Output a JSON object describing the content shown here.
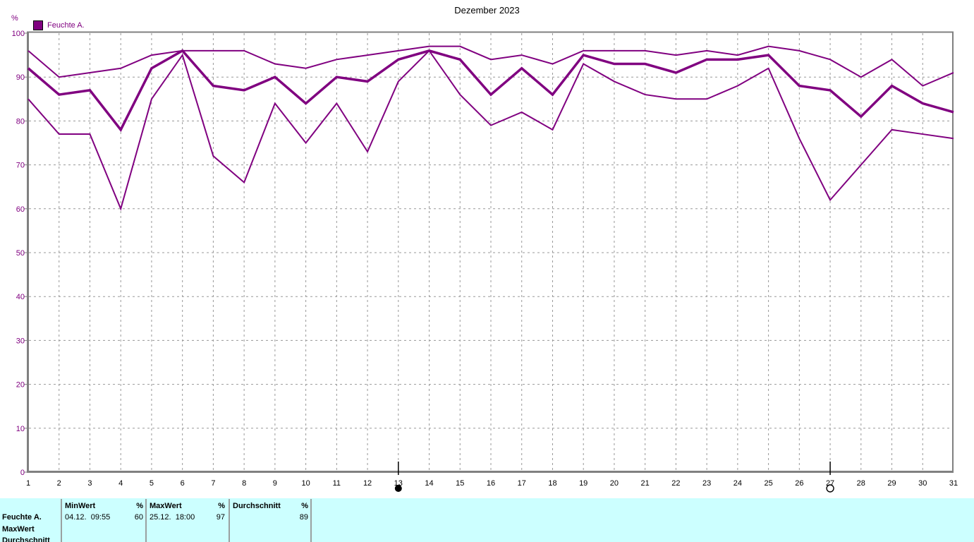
{
  "header": {
    "title": "Dezember 2023"
  },
  "legend": {
    "label": "Feuchte A.",
    "swatch_color": "#800080"
  },
  "axes": {
    "y_unit": "%",
    "y_ticks": [
      "100",
      "90",
      "80",
      "70",
      "60",
      "50",
      "40",
      "30",
      "20",
      "10",
      "0"
    ],
    "x_ticks": [
      "1",
      "2",
      "3",
      "4",
      "5",
      "6",
      "7",
      "8",
      "9",
      "10",
      "11",
      "12",
      "13",
      "14",
      "15",
      "16",
      "17",
      "18",
      "19",
      "20",
      "21",
      "22",
      "23",
      "24",
      "25",
      "26",
      "27",
      "28",
      "29",
      "30",
      "31"
    ]
  },
  "moon_markers": [
    {
      "day": 13,
      "phase": "new-moon",
      "symbol": "●"
    },
    {
      "day": 27,
      "phase": "full-moon",
      "symbol": "○"
    }
  ],
  "chart_data": {
    "type": "line",
    "title": "Dezember 2023",
    "legend": "Feuchte A.",
    "xlabel": "",
    "ylabel": "%",
    "ylim": [
      0,
      100
    ],
    "x_range": [
      1,
      31
    ],
    "grid": true,
    "line_color": "#800080",
    "x": [
      1,
      2,
      3,
      4,
      5,
      6,
      7,
      8,
      9,
      10,
      11,
      12,
      13,
      14,
      15,
      16,
      17,
      18,
      19,
      20,
      21,
      22,
      23,
      24,
      25,
      26,
      27,
      28,
      29,
      30,
      31
    ],
    "series": [
      {
        "name": "MaxWert",
        "values": [
          96,
          90,
          91,
          92,
          95,
          96,
          96,
          96,
          93,
          92,
          94,
          95,
          96,
          97,
          97,
          94,
          95,
          93,
          96,
          96,
          96,
          95,
          96,
          95,
          97,
          96,
          94,
          90,
          94,
          88,
          91
        ]
      },
      {
        "name": "Durchschnitt",
        "values": [
          92,
          86,
          87,
          78,
          92,
          96,
          88,
          87,
          90,
          84,
          90,
          89,
          94,
          96,
          94,
          86,
          92,
          86,
          95,
          93,
          93,
          91,
          94,
          94,
          95,
          88,
          87,
          81,
          88,
          84,
          82
        ]
      },
      {
        "name": "MinWert",
        "values": [
          85,
          77,
          77,
          60,
          85,
          95,
          72,
          66,
          84,
          75,
          84,
          73,
          89,
          96,
          86,
          79,
          82,
          78,
          93,
          89,
          86,
          85,
          85,
          88,
          92,
          76,
          62,
          70,
          78,
          77,
          76
        ]
      }
    ]
  },
  "table": {
    "col_headers": [
      {
        "title": "MinWert",
        "unit": "%"
      },
      {
        "title": "MaxWert",
        "unit": "%"
      },
      {
        "title": "Durchschnitt",
        "unit": "%"
      }
    ],
    "series_row": {
      "label": "Feuchte A.",
      "min_datetime": "04.12.  09:55",
      "min_value": "60",
      "max_datetime": "25.12.  18:00",
      "max_value": "97",
      "avg_value": "89"
    },
    "extra_row_labels": [
      "MaxWert",
      "Durchschnitt"
    ]
  },
  "colors": {
    "line": "#800080",
    "axis_text": "#800080",
    "grid": "#989898",
    "axis": "#808080",
    "table_bg": "#ccffff"
  }
}
